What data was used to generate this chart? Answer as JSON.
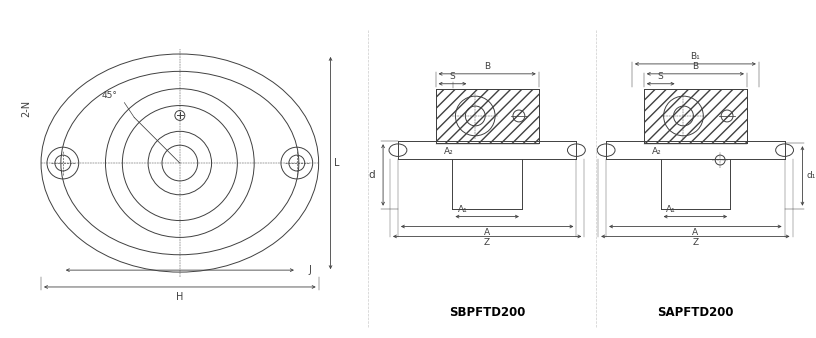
{
  "bg_color": "#ffffff",
  "line_color": "#404040",
  "hatch_color": "#404040",
  "dim_color": "#404040",
  "label_color": "#000000",
  "fig_width": 8.16,
  "fig_height": 3.38,
  "label1": "SBPFTD200",
  "label2": "SAPFTD200",
  "front_view_labels": {
    "angle": "45°",
    "bolt": "2-N",
    "J": "J",
    "H": "H",
    "L": "L"
  },
  "side_labels_sbp": [
    "B",
    "S",
    "A₂",
    "d",
    "A₁",
    "A",
    "Z"
  ],
  "side_labels_sap": [
    "B₁",
    "B",
    "S",
    "A₂",
    "d₁",
    "A₁",
    "A",
    "Z"
  ]
}
